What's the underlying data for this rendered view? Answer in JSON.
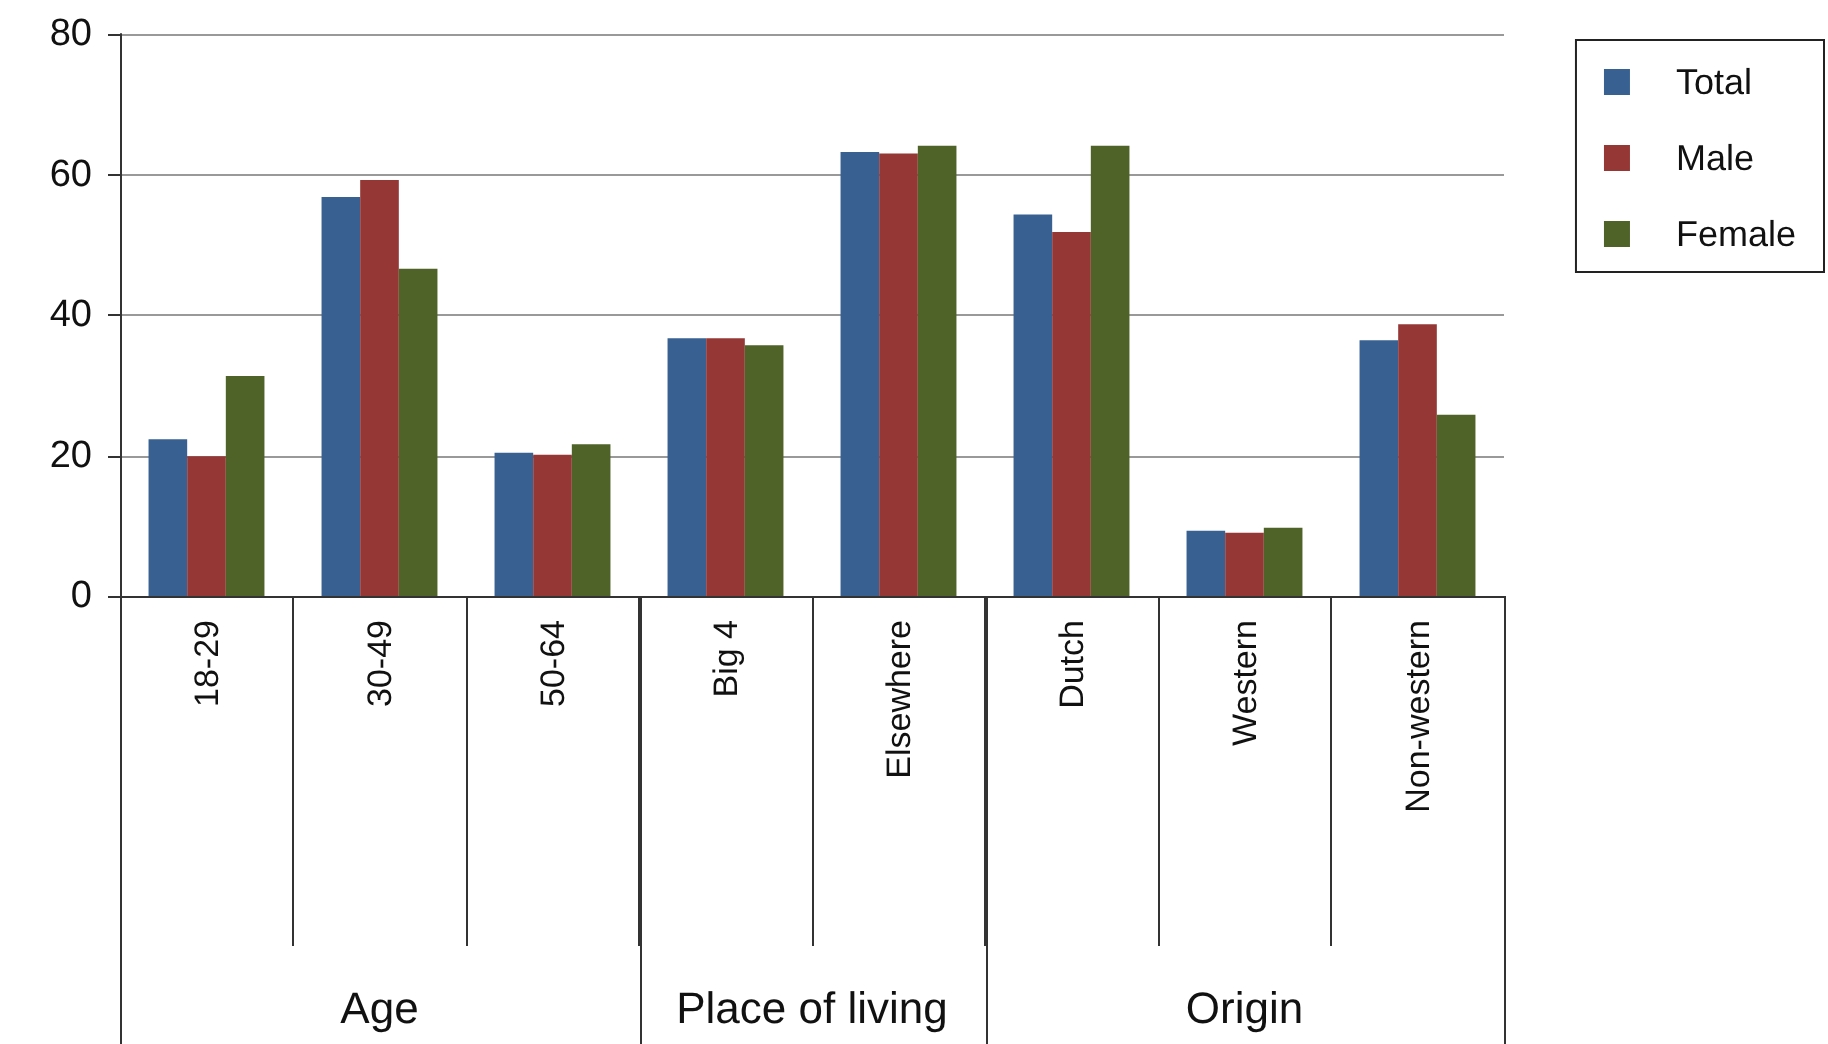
{
  "chart_data": {
    "type": "bar",
    "categories": [
      "18-29",
      "30-49",
      "50-64",
      "Big 4",
      "Elsewhere",
      "Dutch",
      "Western",
      "Non-western"
    ],
    "series": [
      {
        "name": "Total",
        "color": "#386192",
        "values": [
          22.3,
          56.8,
          20.4,
          36.7,
          63.2,
          54.3,
          9.3,
          36.4
        ]
      },
      {
        "name": "Male",
        "color": "#953735",
        "values": [
          19.9,
          59.2,
          20.1,
          36.7,
          63.0,
          51.8,
          9.0,
          38.7
        ]
      },
      {
        "name": "Female",
        "color": "#4f6228",
        "values": [
          31.3,
          46.6,
          21.6,
          35.7,
          64.1,
          64.1,
          9.7,
          25.8
        ]
      }
    ],
    "ylim": [
      0,
      80
    ],
    "yticks": [
      0,
      20,
      40,
      60,
      80
    ],
    "grid": "y",
    "legend": "top right",
    "annotations": [
      "Age",
      "Place of living",
      "Origin"
    ]
  }
}
